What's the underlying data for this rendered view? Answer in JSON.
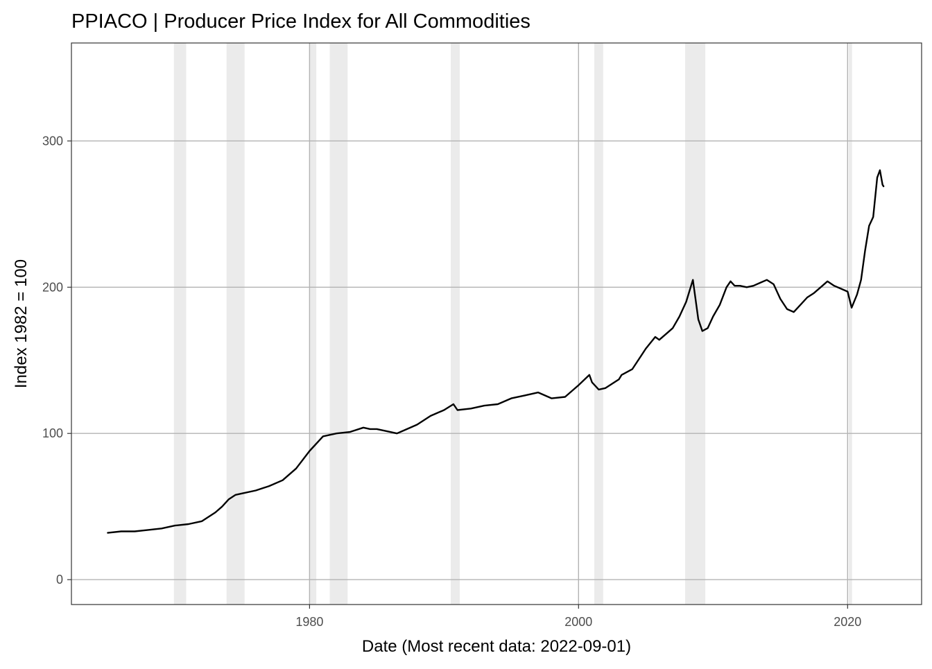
{
  "chart_data": {
    "type": "line",
    "title": "PPIACO | Producer Price Index for All Commodities",
    "xlabel": "Date (Most recent data: 2022-09-01)",
    "ylabel": "Index 1982 = 100",
    "xlim": [
      1962.3,
      2025.5
    ],
    "ylim": [
      -17,
      367
    ],
    "x_ticks": [
      1980,
      2000,
      2020
    ],
    "x_tick_labels": [
      "1980",
      "2000",
      "2020"
    ],
    "y_ticks": [
      0,
      100,
      200,
      300
    ],
    "y_tick_labels": [
      "0",
      "100",
      "200",
      "300"
    ],
    "grid": true,
    "legend": "none",
    "line_color": "#000000",
    "recession_color": "#ebebeb",
    "recessions": [
      [
        1969.92,
        1970.83
      ],
      [
        1973.83,
        1975.17
      ],
      [
        1980.0,
        1980.5
      ],
      [
        1981.5,
        1982.83
      ],
      [
        1990.5,
        1991.17
      ],
      [
        2001.17,
        2001.83
      ],
      [
        2007.92,
        2009.42
      ],
      [
        2020.08,
        2020.33
      ]
    ],
    "series": [
      {
        "x": [
          1965.0,
          1966.0,
          1967.0,
          1968.0,
          1969.0,
          1970.0,
          1971.0,
          1972.0,
          1973.0,
          1973.5,
          1974.0,
          1974.5,
          1975.0,
          1976.0,
          1977.0,
          1978.0,
          1979.0,
          1980.0,
          1980.5,
          1981.0,
          1981.5,
          1982.0,
          1983.0,
          1984.0,
          1984.5,
          1985.0,
          1986.0,
          1986.5,
          1987.0,
          1988.0,
          1989.0,
          1990.0,
          1990.7,
          1991.0,
          1992.0,
          1993.0,
          1994.0,
          1995.0,
          1996.0,
          1997.0,
          1998.0,
          1999.0,
          2000.0,
          2000.8,
          2001.0,
          2001.5,
          2002.0,
          2003.0,
          2003.2,
          2004.0,
          2005.0,
          2005.7,
          2006.0,
          2006.5,
          2007.0,
          2007.5,
          2008.0,
          2008.5,
          2008.9,
          2009.2,
          2009.6,
          2010.0,
          2010.5,
          2011.0,
          2011.3,
          2011.6,
          2012.0,
          2012.5,
          2013.0,
          2013.5,
          2014.0,
          2014.5,
          2015.0,
          2015.5,
          2016.0,
          2016.5,
          2017.0,
          2017.5,
          2018.0,
          2018.5,
          2019.0,
          2019.5,
          2020.0,
          2020.3,
          2020.7,
          2021.0,
          2021.3,
          2021.6,
          2021.9,
          2022.2,
          2022.4,
          2022.6,
          2022.67
        ],
        "y": [
          32,
          33,
          33,
          34,
          35,
          37,
          38,
          40,
          46,
          50,
          55,
          58,
          59,
          61,
          64,
          68,
          76,
          88,
          93,
          98,
          99,
          100,
          101,
          104,
          103,
          103,
          101,
          100,
          102,
          106,
          112,
          116,
          120,
          116,
          117,
          119,
          120,
          124,
          126,
          128,
          124,
          125,
          133,
          140,
          135,
          130,
          131,
          137,
          140,
          144,
          158,
          166,
          164,
          168,
          172,
          180,
          190,
          205,
          178,
          170,
          172,
          180,
          188,
          200,
          204,
          201,
          201,
          200,
          201,
          203,
          205,
          202,
          192,
          185,
          183,
          188,
          193,
          196,
          200,
          204,
          201,
          199,
          197,
          186,
          195,
          205,
          225,
          242,
          248,
          275,
          280,
          270,
          269
        ]
      }
    ]
  }
}
